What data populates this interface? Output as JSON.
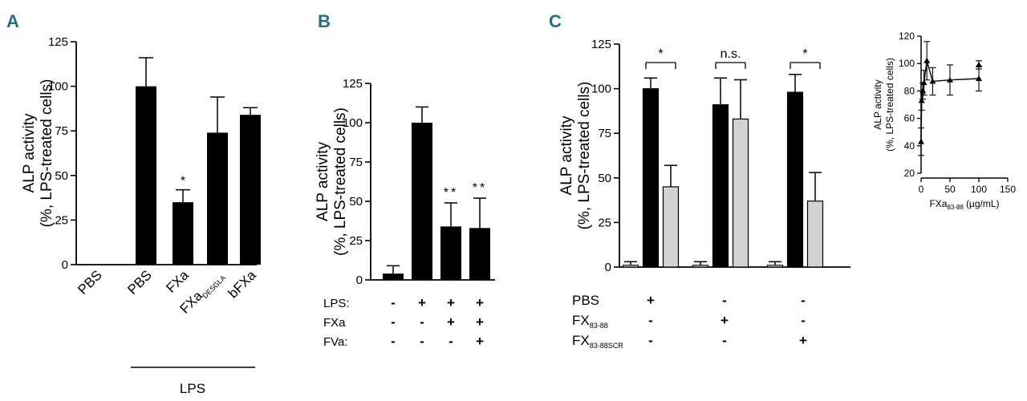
{
  "panels": {
    "a": {
      "letter": "A"
    },
    "b": {
      "letter": "B"
    },
    "c": {
      "letter": "C"
    }
  },
  "chart_data": [
    {
      "panel": "A",
      "type": "bar",
      "ylabel_lines": [
        "ALP activity",
        "(%, LPS-treated cells)"
      ],
      "ylim": [
        0,
        125
      ],
      "yticks": [
        0,
        25,
        50,
        75,
        100,
        125
      ],
      "categories": [
        {
          "main": "PBS",
          "sub": ""
        },
        {
          "main": "PBS",
          "sub": ""
        },
        {
          "main": "FXa",
          "sub": ""
        },
        {
          "main": "FXa",
          "sub": "DESGLA"
        },
        {
          "main": "bFXa",
          "sub": ""
        }
      ],
      "values": [
        0,
        100,
        35,
        74,
        84
      ],
      "errors": [
        0,
        16,
        7,
        20,
        4
      ],
      "significance": [
        "",
        "",
        "*",
        "",
        ""
      ],
      "group_label": "LPS"
    },
    {
      "panel": "B",
      "type": "bar",
      "ylabel_lines": [
        "ALP activity",
        "(%, LPS-treated cells)"
      ],
      "ylim": [
        0,
        125
      ],
      "yticks": [
        0,
        25,
        50,
        75,
        100,
        125
      ],
      "values": [
        4,
        100,
        34,
        33
      ],
      "errors": [
        5,
        10,
        15,
        19
      ],
      "significance": [
        "",
        "",
        "**",
        "**"
      ],
      "condition_rows": [
        {
          "label": "LPS:",
          "signs": [
            "-",
            "+",
            "+",
            "+"
          ]
        },
        {
          "label": "FXa",
          "signs": [
            "-",
            "-",
            "+",
            "+"
          ]
        },
        {
          "label": "FVa:",
          "signs": [
            "-",
            "-",
            "-",
            "+"
          ]
        }
      ]
    },
    {
      "panel": "C",
      "type": "bar",
      "ylabel_lines": [
        "ALP activity",
        "(%, LPS-treated cells)"
      ],
      "ylim": [
        0,
        125
      ],
      "yticks": [
        0,
        25,
        50,
        75,
        100,
        125
      ],
      "groups": [
        {
          "values": [
            1,
            100,
            45
          ],
          "errors": [
            2,
            6,
            12
          ],
          "bracket": "*"
        },
        {
          "values": [
            1,
            91,
            83
          ],
          "errors": [
            2,
            15,
            22
          ],
          "bracket": "n.s."
        },
        {
          "values": [
            1,
            98,
            37
          ],
          "errors": [
            2,
            10,
            16
          ],
          "bracket": "*"
        }
      ],
      "bar_colors": [
        "#ffffff",
        "#000000",
        "#d3d3d3"
      ],
      "condition_rows": [
        {
          "label": "PBS",
          "sub": "",
          "signs": [
            "+",
            "-",
            "-"
          ]
        },
        {
          "label": "FX",
          "sub": "83-88",
          "signs": [
            "-",
            "+",
            "-"
          ]
        },
        {
          "label": "FX",
          "sub": "83-88SCR",
          "signs": [
            "-",
            "-",
            "+"
          ]
        }
      ]
    },
    {
      "panel": "C-inset",
      "type": "line",
      "ylabel_lines": [
        "ALP activity",
        "(%, LPS-treated cells)"
      ],
      "xlabel": "FXa",
      "xlabel_sub": "83-88",
      "xlabel_unit": "(µg/mL)",
      "xlim": [
        0,
        150
      ],
      "ylim": [
        20,
        120
      ],
      "xticks": [
        0,
        50,
        100,
        150
      ],
      "yticks": [
        20,
        40,
        60,
        80,
        100,
        120
      ],
      "series": [
        {
          "x": [
            0,
            1,
            3,
            5,
            10,
            20,
            50,
            100
          ],
          "y": [
            43,
            73,
            80,
            86,
            102,
            87,
            88,
            89
          ],
          "err": [
            10,
            7,
            6,
            9,
            14,
            10,
            11,
            9
          ]
        },
        {
          "x": [
            100
          ],
          "y": [
            99
          ],
          "err": [
            3
          ]
        }
      ]
    }
  ]
}
